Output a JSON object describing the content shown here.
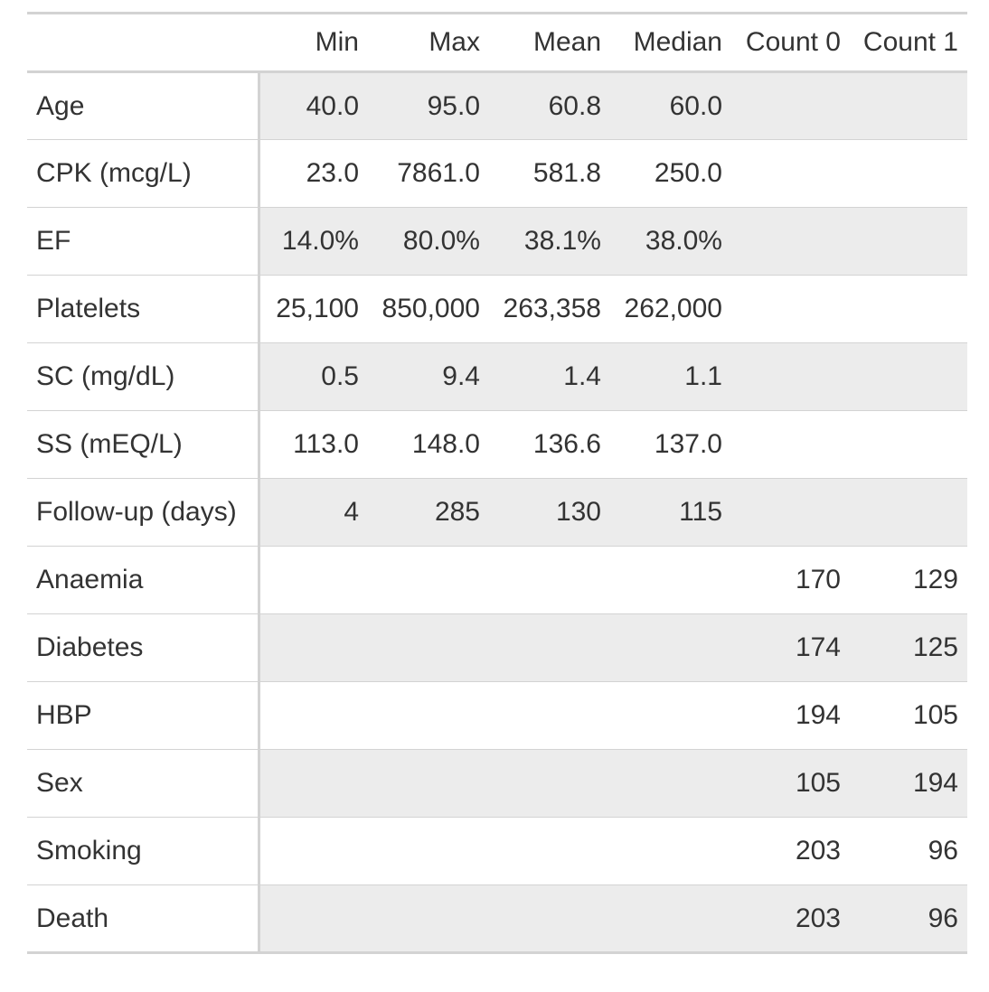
{
  "table": {
    "columns": [
      "",
      "Min",
      "Max",
      "Mean",
      "Median",
      "Count 0",
      "Count 1"
    ],
    "rows": [
      {
        "label": "Age",
        "min": "40.0",
        "max": "95.0",
        "mean": "60.8",
        "median": "60.0",
        "count0": "",
        "count1": ""
      },
      {
        "label": "CPK (mcg/L)",
        "min": "23.0",
        "max": "7861.0",
        "mean": "581.8",
        "median": "250.0",
        "count0": "",
        "count1": ""
      },
      {
        "label": "EF",
        "min": "14.0%",
        "max": "80.0%",
        "mean": "38.1%",
        "median": "38.0%",
        "count0": "",
        "count1": ""
      },
      {
        "label": "Platelets",
        "min": "25,100",
        "max": "850,000",
        "mean": "263,358",
        "median": "262,000",
        "count0": "",
        "count1": ""
      },
      {
        "label": "SC (mg/dL)",
        "min": "0.5",
        "max": "9.4",
        "mean": "1.4",
        "median": "1.1",
        "count0": "",
        "count1": ""
      },
      {
        "label": "SS (mEQ/L)",
        "min": "113.0",
        "max": "148.0",
        "mean": "136.6",
        "median": "137.0",
        "count0": "",
        "count1": ""
      },
      {
        "label": "Follow-up (days)",
        "min": "4",
        "max": "285",
        "mean": "130",
        "median": "115",
        "count0": "",
        "count1": ""
      },
      {
        "label": "Anaemia",
        "min": "",
        "max": "",
        "mean": "",
        "median": "",
        "count0": "170",
        "count1": "129"
      },
      {
        "label": "Diabetes",
        "min": "",
        "max": "",
        "mean": "",
        "median": "",
        "count0": "174",
        "count1": "125"
      },
      {
        "label": "HBP",
        "min": "",
        "max": "",
        "mean": "",
        "median": "",
        "count0": "194",
        "count1": "105"
      },
      {
        "label": "Sex",
        "min": "",
        "max": "",
        "mean": "",
        "median": "",
        "count0": "105",
        "count1": "194"
      },
      {
        "label": "Smoking",
        "min": "",
        "max": "",
        "mean": "",
        "median": "",
        "count0": "203",
        "count1": "96"
      },
      {
        "label": "Death",
        "min": "",
        "max": "",
        "mean": "",
        "median": "",
        "count0": "203",
        "count1": "96"
      }
    ]
  }
}
